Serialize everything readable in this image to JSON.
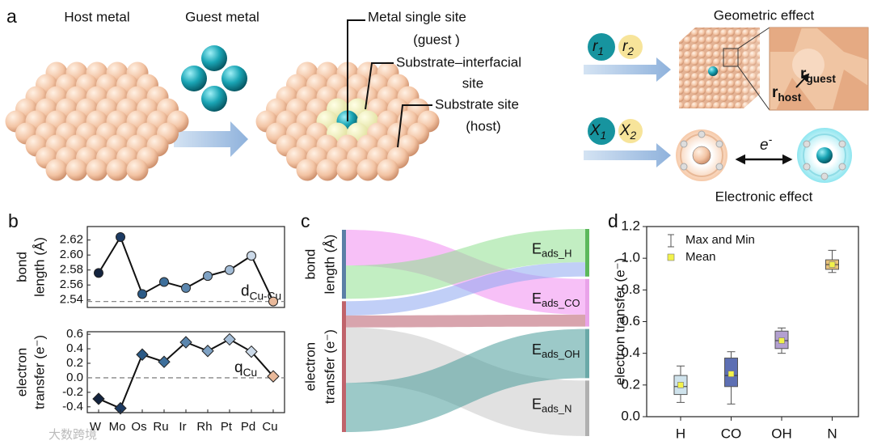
{
  "diagram": {
    "panel": "a",
    "host": "Host metal",
    "guest": "Guest metal",
    "callouts": [
      "Metal single site",
      "(guest )",
      "Substrate–interfacial",
      "site",
      "Substrate site",
      "(host)"
    ],
    "r1": {
      "main": "r",
      "sub": "1"
    },
    "r2": {
      "main": "r",
      "sub": "2"
    },
    "geometric": "Geometric effect",
    "rguest": {
      "main": "r",
      "sub": "guest"
    },
    "rhost": {
      "main": "r",
      "sub": "host"
    },
    "x1": {
      "main": "X",
      "sub": "1"
    },
    "x2": {
      "main": "X",
      "sub": "2"
    },
    "electron": {
      "main": "e",
      "sup": "-"
    },
    "electronic": "Electronic effect",
    "watermark": "大数跨境"
  },
  "chart_data": [
    {
      "type": "line",
      "panel": "b",
      "ylabel": [
        "bond",
        "length (Å)"
      ],
      "marker": "circle",
      "line_color": "#111",
      "values": [
        2.576,
        2.624,
        2.548,
        2.564,
        2.556,
        2.572,
        2.58,
        2.599,
        2.538
      ],
      "colors": [
        "#14243f",
        "#1d3b63",
        "#2b5a86",
        "#3e6f9b",
        "#5b86ae",
        "#7ea1c3",
        "#a3bcd6",
        "#cbd9e8",
        "#e9b99a"
      ],
      "ylim": [
        2.53,
        2.638
      ],
      "yticks": [
        2.54,
        2.56,
        2.58,
        {
          "value": 2.6,
          "label": "2.60"
        },
        2.62
      ],
      "reference": {
        "value": 2.538,
        "label": "d",
        "sub": "Cu-Cu"
      }
    },
    {
      "type": "line",
      "ylabel": [
        "electron",
        "transfer (e⁻)"
      ],
      "marker": "diamond",
      "line_color": "#111",
      "categories": [
        "W",
        "Mo",
        "Os",
        "Ru",
        "Ir",
        "Rh",
        "Pt",
        "Pd",
        "Cu"
      ],
      "values": [
        -0.29,
        -0.42,
        0.32,
        0.22,
        0.49,
        0.37,
        0.53,
        0.36,
        0.02
      ],
      "colors": [
        "#14243f",
        "#1d3b63",
        "#2b5a86",
        "#3e6f9b",
        "#5b86ae",
        "#7ea1c3",
        "#a3bcd6",
        "#cbd9e8",
        "#e9b99a"
      ],
      "ylim": [
        -0.48,
        0.635
      ],
      "yticks": [
        -0.4,
        -0.2,
        {
          "value": 0,
          "label": "0.0"
        },
        0.2,
        0.4,
        0.6
      ],
      "reference": {
        "value": 0,
        "label": "q",
        "sub": "Cu"
      }
    },
    {
      "type": "sankey",
      "panel": "c",
      "nodes": [
        {
          "lines": [
            "bond",
            "length (Å)"
          ],
          "color": "#5b7fa6"
        },
        {
          "lines": [
            "electron",
            "transfer (e⁻)"
          ],
          "color": "#c0636b"
        },
        {
          "label": "E",
          "sub": "ads_H",
          "color": "#5cb85c"
        },
        {
          "label": "E",
          "sub": "ads_CO",
          "color": "#e9a3e9"
        },
        {
          "label": "E",
          "sub": "ads_OH",
          "color": "#6aa9a8"
        },
        {
          "label": "E",
          "sub": "ads_N",
          "color": "#b0b0b0"
        }
      ],
      "links": [
        {
          "source": 0,
          "target": 3,
          "value": 45,
          "color": "#f08cf0"
        },
        {
          "source": 0,
          "target": 2,
          "value": 42,
          "color": "#8fe08f"
        },
        {
          "source": 1,
          "target": 2,
          "value": 18,
          "color": "#8ea8f0"
        },
        {
          "source": 1,
          "target": 3,
          "value": 15,
          "color": "#b85a6a"
        },
        {
          "source": 1,
          "target": 5,
          "value": 70,
          "color": "#c9c9c9"
        },
        {
          "source": 1,
          "target": 4,
          "value": 62,
          "color": "#4a9c9a"
        }
      ]
    },
    {
      "type": "box",
      "panel": "d",
      "ylabel": "electron transfer (e⁻)",
      "categories": [
        "H",
        "CO",
        "OH",
        "N"
      ],
      "boxes": [
        {
          "min": 0.09,
          "q1": 0.14,
          "median": 0.19,
          "q3": 0.26,
          "max": 0.32,
          "mean": 0.2
        },
        {
          "min": 0.08,
          "q1": 0.19,
          "median": 0.26,
          "q3": 0.37,
          "max": 0.41,
          "mean": 0.27
        },
        {
          "min": 0.4,
          "q1": 0.43,
          "median": 0.48,
          "q3": 0.54,
          "max": 0.56,
          "mean": 0.48
        },
        {
          "min": 0.91,
          "q1": 0.93,
          "median": 0.96,
          "q3": 0.99,
          "max": 1.05,
          "mean": 0.96
        }
      ],
      "colors": [
        "#cfe3ec",
        "#5d6fb3",
        "#b3a0d0",
        "#e8c27a"
      ],
      "ylim": [
        0,
        1.2
      ],
      "yticks": [
        {
          "value": 0,
          "label": "0.0"
        },
        0.2,
        0.4,
        0.6,
        0.8,
        {
          "value": 1,
          "label": "1.0"
        },
        1.2
      ],
      "legend": [
        {
          "name": "Max and Min",
          "color": "#555"
        },
        {
          "name": "Mean",
          "color": "#f2f24a"
        }
      ],
      "legend_position": "upper left"
    }
  ]
}
